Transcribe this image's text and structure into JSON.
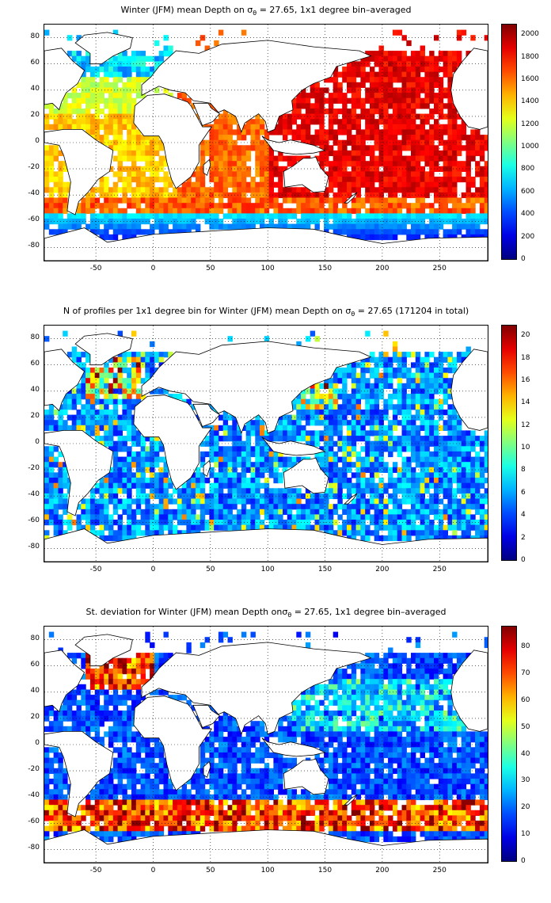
{
  "panels": [
    {
      "title_pre": "Winter (JFM) mean Depth on σ",
      "title_sub": "θ",
      "title_post": " = 27.65, 1x1 degree bin–averaged",
      "colorbar_ticks": [
        "0",
        "200",
        "400",
        "600",
        "800",
        "1000",
        "1200",
        "1400",
        "1600",
        "1800",
        "2000"
      ],
      "colorbar_range": [
        0,
        2100
      ]
    },
    {
      "title_pre": "N of profiles per 1x1 degree bin for Winter (JFM) mean Depth on σ",
      "title_sub": "θ",
      "title_post": " = 27.65 (171204 in total)",
      "colorbar_ticks": [
        "0",
        "2",
        "4",
        "6",
        "8",
        "10",
        "12",
        "14",
        "16",
        "18",
        "20"
      ],
      "colorbar_range": [
        0,
        21
      ]
    },
    {
      "title_pre": "St. deviation for Winter (JFM) mean Depth onσ",
      "title_sub": "θ",
      "title_post": " = 27.65, 1x1 degree bin–averaged",
      "colorbar_ticks": [
        "0",
        "10",
        "20",
        "30",
        "40",
        "50",
        "60",
        "70",
        "80"
      ],
      "colorbar_range": [
        0,
        88
      ]
    }
  ],
  "axes": {
    "x_ticks": [
      "-50",
      "0",
      "50",
      "100",
      "150",
      "200",
      "250"
    ],
    "x_range": [
      -95,
      292
    ],
    "y_ticks": [
      "80",
      "60",
      "40",
      "20",
      "0",
      "-20",
      "-40",
      "-60",
      "-80"
    ],
    "y_range": [
      -90,
      90
    ]
  },
  "colormap": "jet"
}
